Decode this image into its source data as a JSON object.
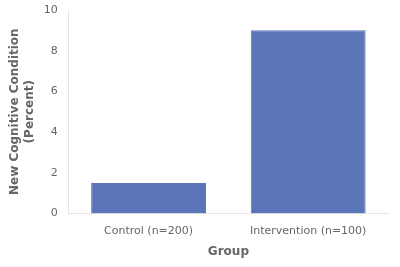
{
  "chart_data": {
    "type": "bar",
    "categories": [
      "Control (n=200)",
      "Intervention (n=100)"
    ],
    "values": [
      1.5,
      9.0
    ],
    "color": "#5b76b8",
    "xlabel": "Group",
    "ylabel": "New Cognitive Condition\n(Percent)",
    "ylim": [
      0,
      10
    ],
    "yticks": [
      0,
      2,
      4,
      6,
      8,
      10
    ],
    "grid": false
  }
}
